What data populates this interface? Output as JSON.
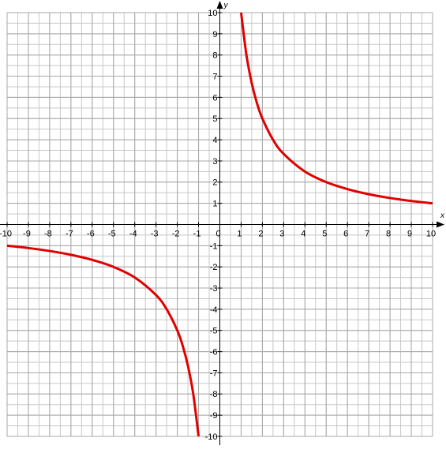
{
  "chart_data": {
    "type": "line",
    "x_label": "x",
    "y_label": "y",
    "x": [
      -10,
      -9,
      -8,
      -7,
      -6,
      -5,
      -4,
      -3,
      -2.5,
      -2,
      -1.75,
      -1.5,
      -1.25,
      -1,
      0,
      1,
      1.25,
      1.5,
      1.75,
      2,
      2.5,
      3,
      4,
      5,
      6,
      7,
      8,
      9,
      10
    ],
    "series": [
      {
        "color": "#e00000",
        "values": [
          -1,
          -1.11,
          -1.25,
          -1.43,
          -1.67,
          -2,
          -2.5,
          -3.33,
          -4,
          -5,
          -5.71,
          -6.67,
          -8,
          -10,
          null,
          10,
          8,
          6.67,
          5.71,
          5,
          4,
          3.33,
          2.5,
          2,
          1.67,
          1.43,
          1.25,
          1.11,
          1
        ]
      }
    ],
    "xlim": [
      -10,
      10
    ],
    "ylim": [
      -10,
      10
    ],
    "xticks": [
      -10,
      -9,
      -8,
      -7,
      -6,
      -5,
      -4,
      -3,
      -2,
      -1,
      0,
      1,
      2,
      3,
      4,
      5,
      6,
      7,
      8,
      9,
      10
    ],
    "yticks": [
      -10,
      -9,
      -8,
      -7,
      -6,
      -5,
      -4,
      -3,
      -2,
      -1,
      1,
      2,
      3,
      4,
      5,
      6,
      7,
      8,
      9,
      10
    ],
    "grid": true,
    "minor_grid": true
  }
}
